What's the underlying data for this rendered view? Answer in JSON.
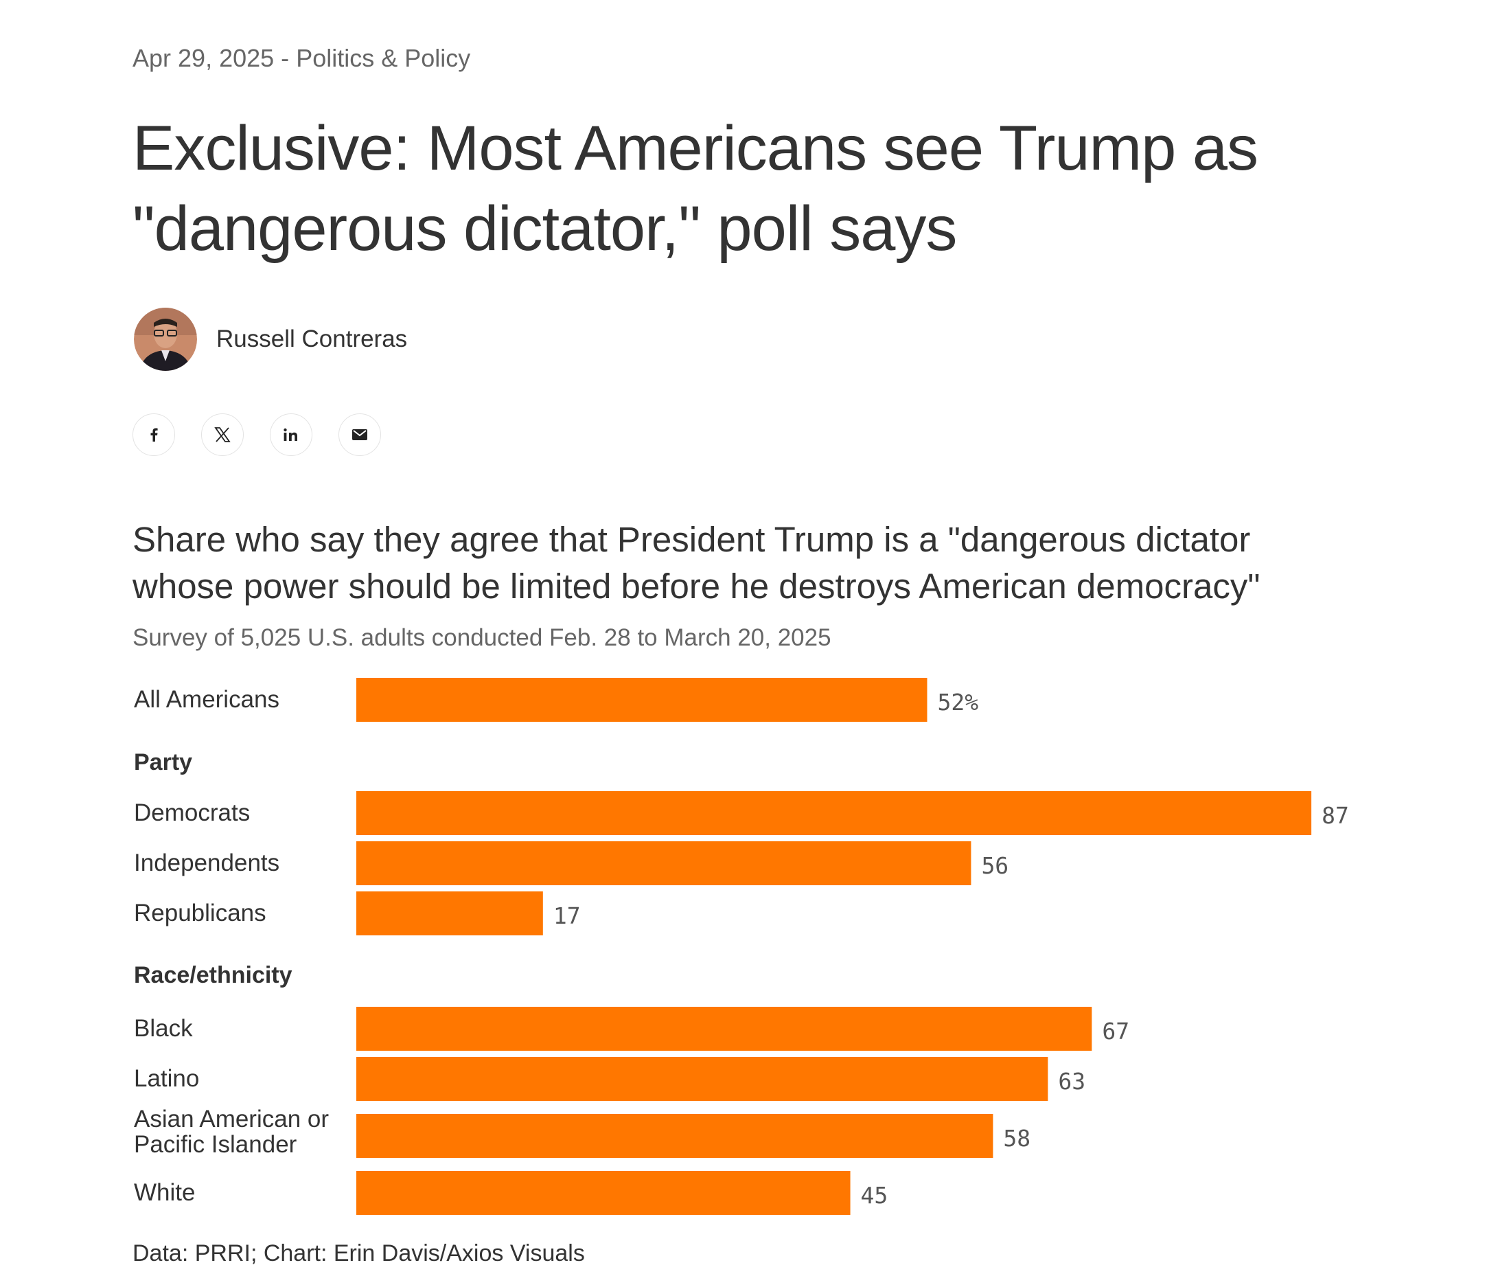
{
  "article": {
    "date": "Apr 29, 2025",
    "separator": "-",
    "section": "Politics & Policy",
    "headline": "Exclusive: Most Americans see Trump as \"dangerous dictator,\" poll says",
    "author": "Russell Contreras"
  },
  "share": {
    "icons": [
      "facebook-icon",
      "x-icon",
      "linkedin-icon",
      "email-icon"
    ]
  },
  "chart_data": {
    "type": "bar",
    "orientation": "horizontal",
    "title": "Share who say they agree that President Trump is a \"dangerous dictator whose power should be limited before he destroys American democracy\"",
    "subtitle": "Survey of 5,025 U.S. adults conducted Feb. 28 to March 20, 2025",
    "xlim": [
      0,
      100
    ],
    "bar_color": "#ff7700",
    "groups": [
      {
        "name": "",
        "rows": [
          {
            "label": "All Americans",
            "value": 52,
            "display": "52%"
          }
        ]
      },
      {
        "name": "Party",
        "rows": [
          {
            "label": "Democrats",
            "value": 87,
            "display": "87"
          },
          {
            "label": "Independents",
            "value": 56,
            "display": "56"
          },
          {
            "label": "Republicans",
            "value": 17,
            "display": "17"
          }
        ]
      },
      {
        "name": "Race/ethnicity",
        "rows": [
          {
            "label": "Black",
            "value": 67,
            "display": "67"
          },
          {
            "label": "Latino",
            "value": 63,
            "display": "63"
          },
          {
            "label": "Asian American or Pacific Islander",
            "label_lines": [
              "Asian American or",
              "Pacific Islander"
            ],
            "value": 58,
            "display": "58"
          },
          {
            "label": "White",
            "value": 45,
            "display": "45"
          }
        ]
      }
    ],
    "source": "Data: PRRI; Chart: Erin Davis/Axios Visuals"
  }
}
